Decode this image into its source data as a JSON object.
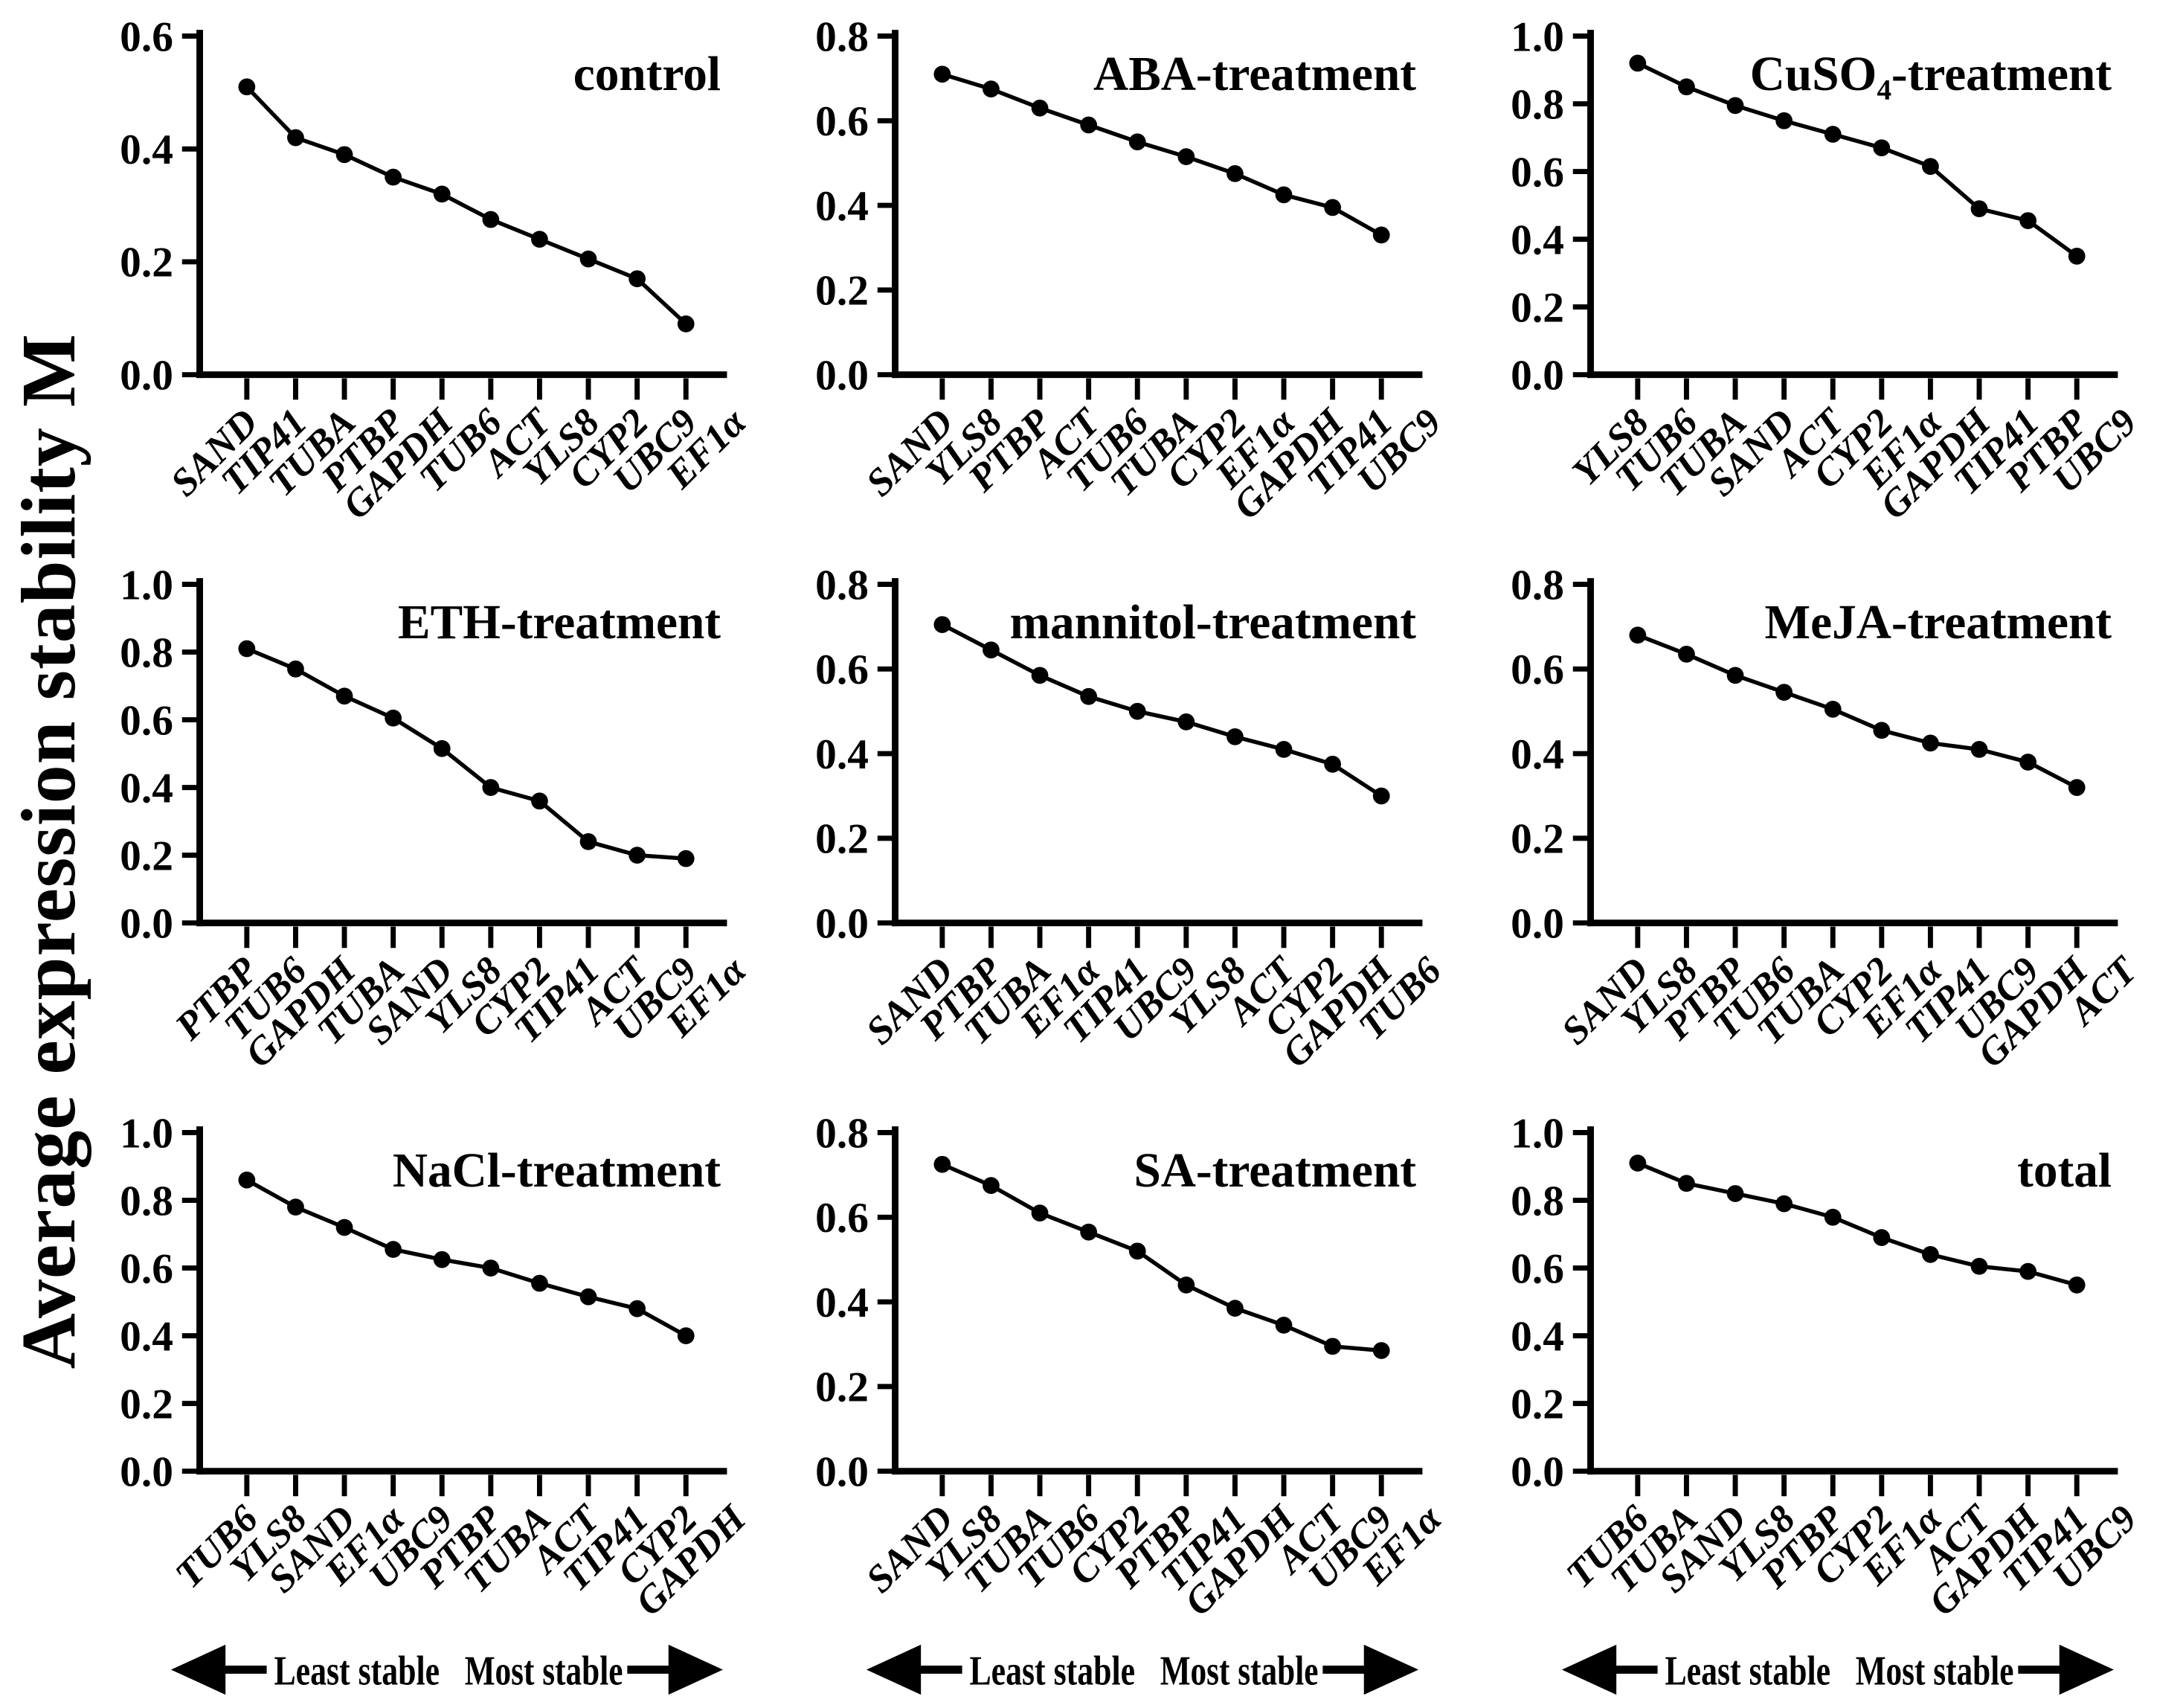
{
  "figure": {
    "y_axis_label": "Average expression stability M",
    "arrow_left_label": "Least stable",
    "arrow_right_label": "Most stable",
    "foreground_color": "#000000",
    "background_color": "#ffffff"
  },
  "chart_data": [
    {
      "type": "line",
      "title": "control",
      "ylim": [
        0,
        0.6
      ],
      "yticks": [
        "0.0",
        "0.2",
        "0.4",
        "0.6"
      ],
      "categories": [
        "SAND",
        "TIP41",
        "TUBA",
        "PTBP",
        "GAPDH",
        "TUB6",
        "ACT",
        "YLS8",
        "CYP2",
        "UBC9",
        "EF1α"
      ],
      "values": [
        0.51,
        0.42,
        0.39,
        0.35,
        0.32,
        0.275,
        0.24,
        0.205,
        0.17,
        0.09
      ],
      "note_last_point_spans_last_two_labels": true
    },
    {
      "type": "line",
      "title": "ABA-treatment",
      "ylim": [
        0,
        0.8
      ],
      "yticks": [
        "0.0",
        "0.2",
        "0.4",
        "0.6",
        "0.8"
      ],
      "categories": [
        "SAND",
        "YLS8",
        "PTBP",
        "ACT",
        "TUB6",
        "TUBA",
        "CYP2",
        "EF1α",
        "GAPDH",
        "TIP41",
        "UBC9"
      ],
      "values": [
        0.71,
        0.675,
        0.63,
        0.59,
        0.55,
        0.515,
        0.475,
        0.425,
        0.395,
        0.33
      ],
      "note_last_point_spans_last_two_labels": true
    },
    {
      "type": "line",
      "title": "CuSO₄-treatment",
      "ylim": [
        0,
        1.0
      ],
      "yticks": [
        "0.0",
        "0.2",
        "0.4",
        "0.6",
        "0.8",
        "1.0"
      ],
      "categories": [
        "YLS8",
        "TUB6",
        "TUBA",
        "SAND",
        "ACT",
        "CYP2",
        "EF1α",
        "GAPDH",
        "TIP41",
        "PTBP",
        "UBC9"
      ],
      "values": [
        0.92,
        0.85,
        0.795,
        0.75,
        0.71,
        0.67,
        0.615,
        0.49,
        0.455,
        0.35
      ],
      "note_last_point_spans_last_two_labels": true
    },
    {
      "type": "line",
      "title": "ETH-treatment",
      "ylim": [
        0,
        1.0
      ],
      "yticks": [
        "0.0",
        "0.2",
        "0.4",
        "0.6",
        "0.8",
        "1.0"
      ],
      "categories": [
        "PTBP",
        "TUB6",
        "GAPDH",
        "TUBA",
        "SAND",
        "YLS8",
        "CYP2",
        "TIP41",
        "ACT",
        "UBC9",
        "EF1α"
      ],
      "values": [
        0.81,
        0.75,
        0.67,
        0.605,
        0.515,
        0.4,
        0.36,
        0.24,
        0.2,
        0.19
      ],
      "note_last_point_spans_last_two_labels": true
    },
    {
      "type": "line",
      "title": "mannitol-treatment",
      "ylim": [
        0,
        0.8
      ],
      "yticks": [
        "0.0",
        "0.2",
        "0.4",
        "0.6",
        "0.8"
      ],
      "categories": [
        "SAND",
        "PTBP",
        "TUBA",
        "EF1α",
        "TIP41",
        "UBC9",
        "YLS8",
        "ACT",
        "CYP2",
        "GAPDH",
        "TUB6"
      ],
      "values": [
        0.705,
        0.645,
        0.585,
        0.535,
        0.5,
        0.475,
        0.44,
        0.41,
        0.375,
        0.3
      ],
      "note_last_point_spans_last_two_labels": true
    },
    {
      "type": "line",
      "title": "MeJA-treatment",
      "ylim": [
        0,
        0.8
      ],
      "yticks": [
        "0.0",
        "0.2",
        "0.4",
        "0.6",
        "0.8"
      ],
      "categories": [
        "SAND",
        "YLS8",
        "PTBP",
        "TUB6",
        "TUBA",
        "CYP2",
        "EF1α",
        "TIP41",
        "UBC9",
        "GAPDH",
        "ACT"
      ],
      "values": [
        0.68,
        0.635,
        0.585,
        0.545,
        0.505,
        0.455,
        0.425,
        0.41,
        0.38,
        0.32
      ],
      "note_last_point_spans_last_two_labels": true
    },
    {
      "type": "line",
      "title": "NaCl-treatment",
      "ylim": [
        0,
        1.0
      ],
      "yticks": [
        "0.0",
        "0.2",
        "0.4",
        "0.6",
        "0.8",
        "1.0"
      ],
      "categories": [
        "TUB6",
        "YLS8",
        "SAND",
        "EF1α",
        "UBC9",
        "PTBP",
        "TUBA",
        "ACT",
        "TIP41",
        "CYP2",
        "GAPDH"
      ],
      "values": [
        0.86,
        0.78,
        0.72,
        0.655,
        0.625,
        0.6,
        0.555,
        0.515,
        0.48,
        0.4
      ],
      "note_last_point_spans_last_two_labels": true
    },
    {
      "type": "line",
      "title": "SA-treatment",
      "ylim": [
        0,
        0.8
      ],
      "yticks": [
        "0.0",
        "0.2",
        "0.4",
        "0.6",
        "0.8"
      ],
      "categories": [
        "SAND",
        "YLS8",
        "TUBA",
        "TUB6",
        "CYP2",
        "PTBP",
        "TIP41",
        "GAPDH",
        "ACT",
        "UBC9",
        "EF1α"
      ],
      "values": [
        0.725,
        0.675,
        0.61,
        0.565,
        0.52,
        0.44,
        0.385,
        0.345,
        0.295,
        0.285
      ],
      "note_last_point_spans_last_two_labels": true
    },
    {
      "type": "line",
      "title": "total",
      "ylim": [
        0,
        1.0
      ],
      "yticks": [
        "0.0",
        "0.2",
        "0.4",
        "0.6",
        "0.8",
        "1.0"
      ],
      "categories": [
        "TUB6",
        "TUBA",
        "SAND",
        "YLS8",
        "PTBP",
        "CYP2",
        "EF1α",
        "ACT",
        "GAPDH",
        "TIP41",
        "UBC9"
      ],
      "values": [
        0.91,
        0.85,
        0.82,
        0.79,
        0.75,
        0.69,
        0.64,
        0.605,
        0.59,
        0.55
      ],
      "note_last_point_spans_last_two_labels": true
    }
  ]
}
